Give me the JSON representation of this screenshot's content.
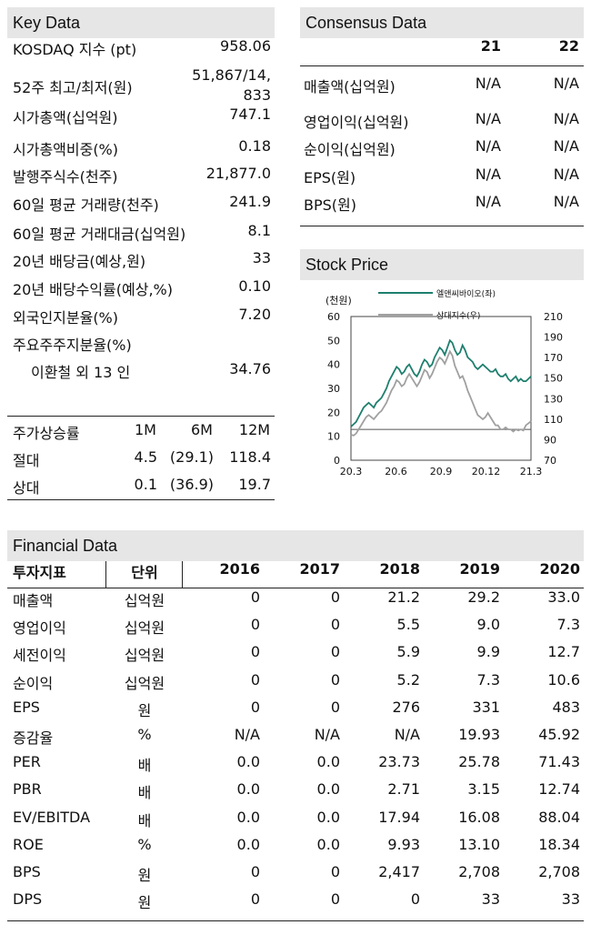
{
  "key_data": {
    "title": "Key Data",
    "rows": [
      {
        "label": "KOSDAQ 지수 (pt)",
        "value": "958.06"
      },
      {
        "label": "52주 최고/최저(원)",
        "value_line1": "51,867/14,",
        "value_line2": "833"
      },
      {
        "label": "시가총액(십억원)",
        "value": "747.1"
      },
      {
        "label": "시가총액비중(%)",
        "value": "0.18"
      },
      {
        "label": "발행주식수(천주)",
        "value": "21,877.0"
      },
      {
        "label": "60일 평균 거래량(천주)",
        "value": "241.9"
      },
      {
        "label": "60일 평균 거래대금(십억원)",
        "value": "8.1"
      },
      {
        "label": "20년 배당금(예상,원)",
        "value": "33"
      },
      {
        "label": "20년 배당수익률(예상,%)",
        "value": "0.10"
      },
      {
        "label": "외국인지분율(%)",
        "value": "7.20"
      },
      {
        "label": "주요주주지분율(%)",
        "value": ""
      },
      {
        "label": "이환철 외 13 인",
        "value": "34.76"
      }
    ],
    "returns": {
      "header": [
        "주가상승률",
        "1M",
        "6M",
        "12M"
      ],
      "rows": [
        [
          "절대",
          "4.5",
          "(29.1)",
          "118.4"
        ],
        [
          "상대",
          "0.1",
          "(36.9)",
          "19.7"
        ]
      ]
    }
  },
  "consensus": {
    "title": "Consensus Data",
    "columns": [
      "21",
      "22"
    ],
    "rows": [
      {
        "label": "매출액(십억원)",
        "values": [
          "N/A",
          "N/A"
        ]
      },
      {
        "label": "영업이익(십억원)",
        "values": [
          "N/A",
          "N/A"
        ]
      },
      {
        "label": "순이익(십억원)",
        "values": [
          "N/A",
          "N/A"
        ]
      },
      {
        "label": "EPS(원)",
        "values": [
          "N/A",
          "N/A"
        ]
      },
      {
        "label": "BPS(원)",
        "values": [
          "N/A",
          "N/A"
        ]
      }
    ]
  },
  "stock_price": {
    "title": "Stock Price",
    "chart_data": {
      "type": "line",
      "unit_label": "(천원)",
      "legend": [
        "엘앤씨바이오(좌)",
        "상대지수(우)"
      ],
      "colors": {
        "price": "#1e7f6e",
        "relative": "#a0a0a0"
      },
      "x_ticks": [
        "20.3",
        "20.6",
        "20.9",
        "20.12",
        "21.3"
      ],
      "y_left_ticks": [
        "0",
        "10",
        "20",
        "30",
        "40",
        "50",
        "60"
      ],
      "y_right_ticks": [
        "70",
        "90",
        "110",
        "130",
        "150",
        "170",
        "190",
        "210"
      ],
      "ylim_left": [
        0,
        60
      ],
      "ylim_right": [
        70,
        210
      ],
      "reference_line_right": 100,
      "series": [
        {
          "name": "엘앤씨바이오(좌)",
          "axis": "left",
          "values": [
            14,
            15,
            16,
            18,
            20,
            22,
            23,
            24,
            23,
            22,
            24,
            25,
            26,
            28,
            30,
            33,
            35,
            37,
            39,
            38,
            36,
            37,
            39,
            40,
            38,
            36,
            35,
            37,
            40,
            42,
            41,
            39,
            40,
            43,
            45,
            47,
            46,
            44,
            47,
            50,
            49,
            46,
            44,
            45,
            48,
            46,
            43,
            42,
            41,
            39,
            38,
            39,
            40,
            39,
            38,
            37,
            37,
            38,
            36,
            35,
            35,
            36,
            34,
            33,
            34,
            35,
            33,
            34,
            33,
            33,
            34,
            35
          ]
        },
        {
          "name": "상대지수(우)",
          "axis": "right",
          "values": [
            95,
            94,
            96,
            100,
            104,
            108,
            112,
            114,
            112,
            110,
            113,
            116,
            118,
            122,
            126,
            132,
            138,
            142,
            148,
            146,
            142,
            144,
            150,
            154,
            150,
            146,
            142,
            146,
            152,
            158,
            156,
            150,
            154,
            160,
            166,
            170,
            168,
            164,
            170,
            176,
            172,
            162,
            156,
            150,
            152,
            146,
            138,
            132,
            126,
            120,
            114,
            112,
            110,
            112,
            116,
            112,
            108,
            104,
            104,
            100,
            100,
            102,
            100,
            100,
            98,
            100,
            99,
            100,
            99,
            104,
            106,
            108
          ]
        }
      ]
    }
  },
  "financial": {
    "title": "Financial Data",
    "header": [
      "투자지표",
      "단위",
      "2016",
      "2017",
      "2018",
      "2019",
      "2020"
    ],
    "rows": [
      [
        "매출액",
        "십억원",
        "0",
        "0",
        "21.2",
        "29.2",
        "33.0"
      ],
      [
        "영업이익",
        "십억원",
        "0",
        "0",
        "5.5",
        "9.0",
        "7.3"
      ],
      [
        "세전이익",
        "십억원",
        "0",
        "0",
        "5.9",
        "9.9",
        "12.7"
      ],
      [
        "순이익",
        "십억원",
        "0",
        "0",
        "5.2",
        "7.3",
        "10.6"
      ],
      [
        "EPS",
        "원",
        "0",
        "0",
        "276",
        "331",
        "483"
      ],
      [
        "증감율",
        "%",
        "N/A",
        "N/A",
        "N/A",
        "19.93",
        "45.92"
      ],
      [
        "PER",
        "배",
        "0.0",
        "0.0",
        "23.73",
        "25.78",
        "71.43"
      ],
      [
        "PBR",
        "배",
        "0.0",
        "0.0",
        "2.71",
        "3.15",
        "12.74"
      ],
      [
        "EV/EBITDA",
        "배",
        "0.0",
        "0.0",
        "17.94",
        "16.08",
        "88.04"
      ],
      [
        "ROE",
        "%",
        "0.0",
        "0.0",
        "9.93",
        "13.10",
        "18.34"
      ],
      [
        "BPS",
        "원",
        "0",
        "0",
        "2,417",
        "2,708",
        "2,708"
      ],
      [
        "DPS",
        "원",
        "0",
        "0",
        "0",
        "33",
        "33"
      ]
    ]
  }
}
